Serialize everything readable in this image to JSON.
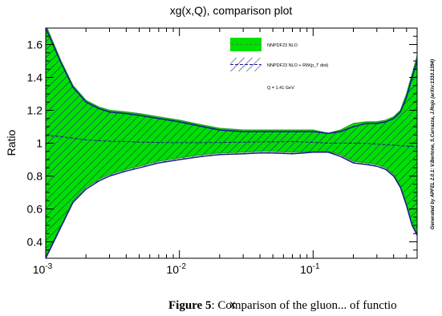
{
  "chart_data": {
    "type": "area",
    "title": "xg(x,Q), comparison plot",
    "xlabel": "x",
    "ylabel": "Ratio",
    "x_scale": "log",
    "xlim": [
      0.001,
      0.6
    ],
    "ylim": [
      0.3,
      1.7
    ],
    "y_ticks": [
      "0.4",
      "0.6",
      "0.8",
      "1",
      "1.2",
      "1.4",
      "1.6"
    ],
    "x_ticks": [
      {
        "value": 0.001,
        "base": "10",
        "exp": "-3"
      },
      {
        "value": 0.01,
        "base": "10",
        "exp": "-2"
      },
      {
        "value": 0.1,
        "base": "10",
        "exp": "-1"
      }
    ],
    "grid": false,
    "legend_position": "top-right",
    "annotation": "Q = 1.41 GeV",
    "side_note": "Generated by APFEL 2.0.1: V.Bertone, S.Carrazza, J.Rojo (arXiv:1310.1394)",
    "series": [
      {
        "name": "NNPDF23 NLO",
        "color": "#00e000",
        "line_color": "#22a022",
        "x": [
          0.001,
          0.0013,
          0.0016,
          0.002,
          0.0025,
          0.003,
          0.004,
          0.005,
          0.007,
          0.01,
          0.015,
          0.02,
          0.03,
          0.04,
          0.05,
          0.07,
          0.1,
          0.13,
          0.16,
          0.2,
          0.25,
          0.3,
          0.35,
          0.4,
          0.45,
          0.5,
          0.55,
          0.6
        ],
        "central": [
          1.04,
          1.035,
          1.028,
          1.02,
          1.015,
          1.012,
          1.01,
          1.008,
          1.005,
          1.003,
          1.003,
          1.005,
          1.007,
          1.008,
          1.01,
          1.012,
          1.005,
          1.0,
          1.0,
          1.0,
          1.0,
          0.995,
          0.99,
          0.99,
          0.985,
          0.985,
          0.98,
          0.98
        ],
        "upper": [
          1.72,
          1.5,
          1.35,
          1.26,
          1.22,
          1.2,
          1.19,
          1.18,
          1.16,
          1.14,
          1.11,
          1.09,
          1.08,
          1.08,
          1.08,
          1.08,
          1.08,
          1.06,
          1.08,
          1.12,
          1.13,
          1.13,
          1.14,
          1.16,
          1.2,
          1.3,
          1.42,
          1.53
        ]
      },
      {
        "name": "NNPDF23 NLO + RW(p_T dist)",
        "color": "#1a1a8c",
        "x": [
          0.001,
          0.0013,
          0.0016,
          0.002,
          0.0025,
          0.003,
          0.004,
          0.005,
          0.007,
          0.01,
          0.015,
          0.02,
          0.03,
          0.04,
          0.05,
          0.07,
          0.1,
          0.13,
          0.16,
          0.2,
          0.25,
          0.3,
          0.35,
          0.4,
          0.45,
          0.5,
          0.55,
          0.6
        ],
        "central": [
          1.05,
          1.04,
          1.03,
          1.02,
          1.015,
          1.012,
          1.01,
          1.006,
          1.004,
          1.003,
          1.003,
          1.004,
          1.006,
          1.008,
          1.008,
          1.01,
          1.005,
          1.0,
          1.0,
          1.0,
          0.998,
          0.995,
          0.99,
          0.988,
          0.985,
          0.982,
          0.98,
          0.98
        ],
        "upper": [
          1.7,
          1.49,
          1.34,
          1.25,
          1.21,
          1.19,
          1.18,
          1.17,
          1.15,
          1.13,
          1.1,
          1.08,
          1.07,
          1.07,
          1.07,
          1.07,
          1.07,
          1.06,
          1.07,
          1.1,
          1.12,
          1.12,
          1.13,
          1.15,
          1.19,
          1.28,
          1.4,
          1.5
        ],
        "lower": [
          0.3,
          0.49,
          0.64,
          0.72,
          0.77,
          0.8,
          0.83,
          0.85,
          0.88,
          0.9,
          0.92,
          0.93,
          0.935,
          0.94,
          0.94,
          0.935,
          0.945,
          0.945,
          0.92,
          0.88,
          0.87,
          0.86,
          0.84,
          0.8,
          0.73,
          0.62,
          0.5,
          0.44
        ]
      }
    ],
    "lower_nnpdf": [
      0.31,
      0.5,
      0.65,
      0.73,
      0.78,
      0.81,
      0.84,
      0.86,
      0.89,
      0.91,
      0.93,
      0.94,
      0.945,
      0.95,
      0.95,
      0.945,
      0.95,
      0.95,
      0.93,
      0.89,
      0.88,
      0.87,
      0.85,
      0.81,
      0.74,
      0.63,
      0.51,
      0.45
    ]
  },
  "caption": {
    "label": "Figure 5",
    "text": ": Comparison of the gluon... of functio"
  }
}
